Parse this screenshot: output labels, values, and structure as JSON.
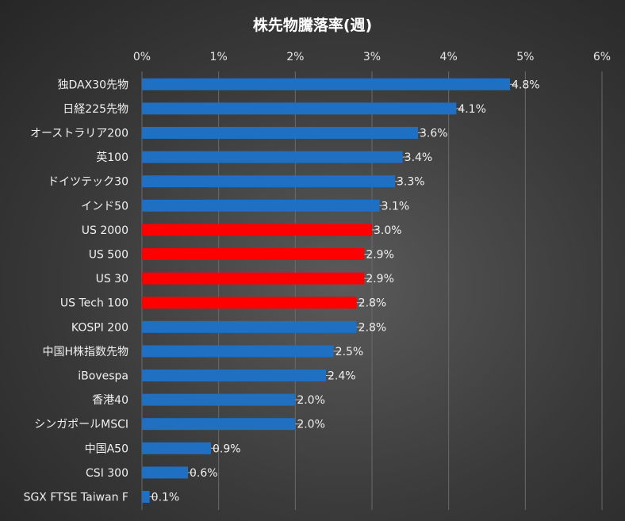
{
  "chart_data": {
    "type": "bar",
    "orientation": "horizontal",
    "title": "株先物騰落率(週)",
    "xlim": [
      0,
      6
    ],
    "x_ticks": [
      "0%",
      "1%",
      "2%",
      "3%",
      "4%",
      "5%",
      "6%"
    ],
    "grid": true,
    "categories": [
      "独DAX30先物",
      "日経225先物",
      "オーストラリア200",
      "英100",
      "ドイツテック30",
      "インド50",
      "US 2000",
      "US 500",
      "US 30",
      "US Tech 100",
      "KOSPI 200",
      "中国H株指数先物",
      "iBovespa",
      "香港40",
      "シンガポールMSCI",
      "中国A50",
      "CSI 300",
      "SGX FTSE Taiwan F"
    ],
    "values": [
      4.8,
      4.1,
      3.6,
      3.4,
      3.3,
      3.1,
      3.0,
      2.9,
      2.9,
      2.8,
      2.8,
      2.5,
      2.4,
      2.0,
      2.0,
      0.9,
      0.6,
      0.1
    ],
    "value_labels": [
      "4.8%",
      "4.1%",
      "3.6%",
      "3.4%",
      "3.3%",
      "3.1%",
      "3.0%",
      "2.9%",
      "2.9%",
      "2.8%",
      "2.8%",
      "2.5%",
      "2.4%",
      "2.0%",
      "2.0%",
      "0.9%",
      "0.6%",
      "0.1%"
    ],
    "highlight": [
      false,
      false,
      false,
      false,
      false,
      false,
      true,
      true,
      true,
      true,
      false,
      false,
      false,
      false,
      false,
      false,
      false,
      false
    ],
    "colors": {
      "default": "#1f6fc2",
      "highlight": "#ff0000",
      "background": "#404040"
    }
  }
}
